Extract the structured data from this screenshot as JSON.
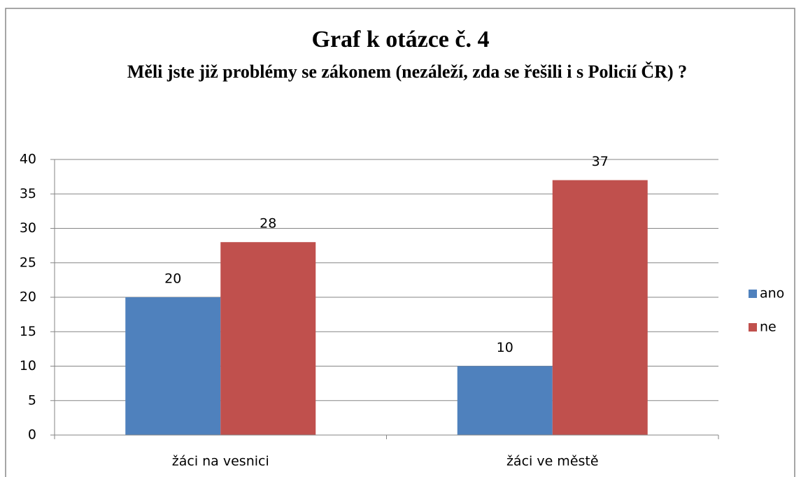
{
  "chart_data": {
    "type": "bar",
    "title": "Graf k otázce č. 4",
    "subtitle": "Měli jste již problémy se zákonem (nezáleží, zda se řešili i s Policií ČR) ?",
    "categories": [
      "žáci na vesnici",
      "žáci ve městě"
    ],
    "series": [
      {
        "name": "ano",
        "color": "#4f81bd",
        "values": [
          20,
          10
        ]
      },
      {
        "name": "ne",
        "color": "#c0504d",
        "values": [
          28,
          37
        ]
      }
    ],
    "ylim": [
      0,
      40
    ],
    "yticks": [
      0,
      5,
      10,
      15,
      20,
      25,
      30,
      35,
      40
    ],
    "grid": true,
    "legend": "right"
  }
}
